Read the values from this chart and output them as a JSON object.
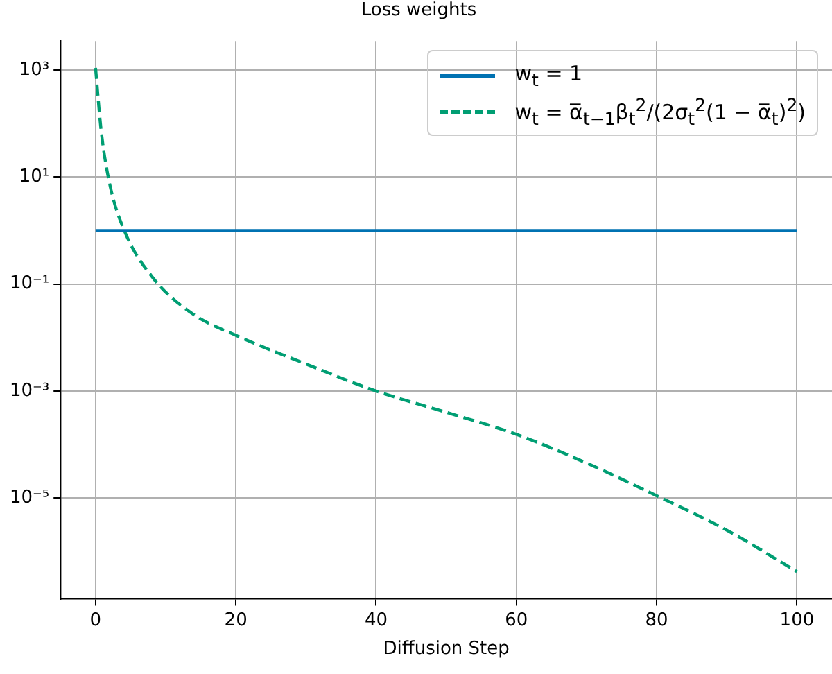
{
  "chart_data": {
    "type": "line",
    "title": "Loss weights",
    "xlabel": "Diffusion Step",
    "log": "y",
    "grid": true,
    "legend": "top right",
    "xlim": [
      -5,
      105
    ],
    "xticks": [
      0,
      20,
      40,
      60,
      80,
      100
    ],
    "ylim": [
      1.3e-07,
      3500
    ],
    "yticks": [
      {
        "value": 1000,
        "label": "10³"
      },
      {
        "value": 10,
        "label": "10¹"
      },
      {
        "value": 0.1,
        "label": "10⁻¹"
      },
      {
        "value": 0.001,
        "label": "10⁻³"
      },
      {
        "value": 1e-05,
        "label": "10⁻⁵"
      }
    ],
    "series": [
      {
        "name": "w$_{t}$ = 1",
        "color": "#0072b2",
        "line_style": "solid",
        "x": [
          0,
          100
        ],
        "values": [
          1,
          1
        ]
      },
      {
        "name": "w$_{t}$ = α̅$_{t−1}$β$_{t}$$^{2}$/(2σ$_{t}$$^{2}$(1 − α̅$_{t}$)$^{2}$)",
        "color": "#009e73",
        "line_style": "dashed",
        "x": [
          0,
          0.8,
          2,
          4.1,
          8.2,
          13.8,
          20,
          30,
          40,
          50,
          60,
          70,
          80,
          90,
          100
        ],
        "values": [
          1100,
          74,
          7.6,
          1,
          0.13,
          0.028,
          0.011,
          0.0032,
          0.001,
          0.0004,
          0.000155,
          4.5e-05,
          1.1e-05,
          2.5e-06,
          4.2e-07
        ]
      }
    ]
  }
}
